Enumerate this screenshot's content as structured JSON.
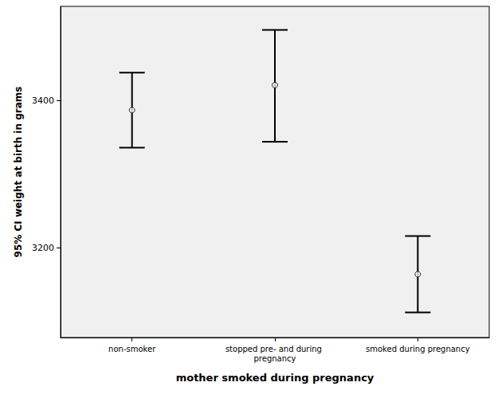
{
  "chart_data": {
    "type": "errorbar",
    "x_label": "mother smoked during pregnancy",
    "y_label": "95% CI weight at birth in grams",
    "categories": [
      "non-smoker",
      "stopped pre- and during pregnancy",
      "smoked during pregnancy"
    ],
    "values": [
      3387,
      3421,
      3164
    ],
    "lower": [
      3336,
      3344,
      3112
    ],
    "upper": [
      3438,
      3496,
      3216
    ],
    "color": "#000000",
    "marker": "circle",
    "ylim": [
      3078,
      3528
    ],
    "yticks": [
      3200,
      3400
    ],
    "grid": false
  }
}
